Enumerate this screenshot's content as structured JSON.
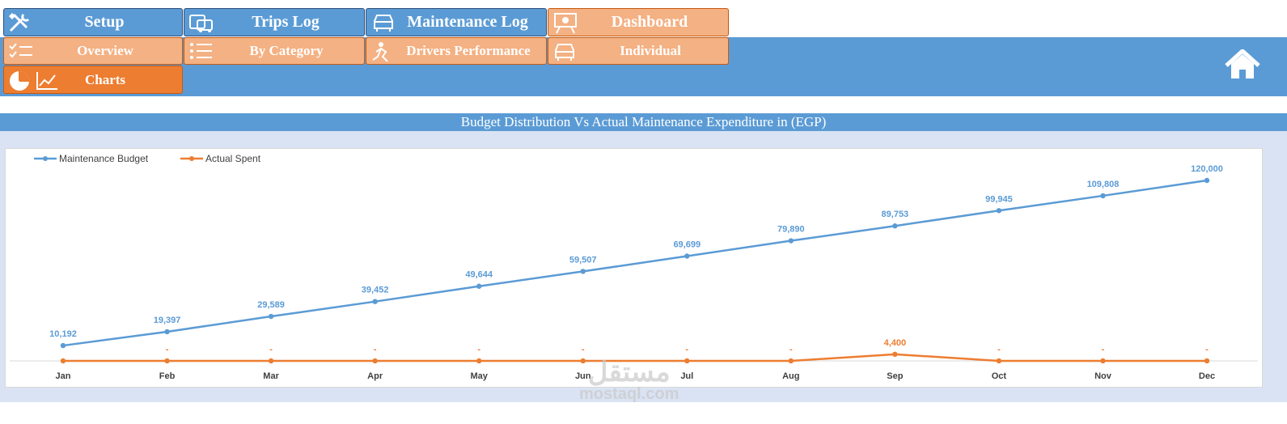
{
  "nav": {
    "setup": "Setup",
    "trips_log": "Trips Log",
    "maintenance_log": "Maintenance Log",
    "dashboard": "Dashboard",
    "overview": "Overview",
    "by_category": "By Category",
    "drivers_performance": "Drivers Performance",
    "individual": "Individual",
    "charts": "Charts"
  },
  "colors": {
    "blue": "#5b9bd5",
    "orange": "#ed7d31",
    "peach": "#f4b183"
  },
  "watermark": {
    "arabic": "مستقل",
    "latin": "mostaql.com"
  },
  "chart_data": {
    "type": "line",
    "title": "Budget Distribution Vs Actual Maintenance Expenditure in (EGP)",
    "categories": [
      "Jan",
      "Feb",
      "Mar",
      "Apr",
      "May",
      "Jun",
      "Jul",
      "Aug",
      "Sep",
      "Oct",
      "Nov",
      "Dec"
    ],
    "series": [
      {
        "name": "Maintenance Budget",
        "color": "#5b9bd5",
        "values": [
          10192,
          19397,
          29589,
          39452,
          49644,
          59507,
          69699,
          79890,
          89753,
          99945,
          109808,
          120000
        ],
        "labels": [
          "10,192",
          "19,397",
          "29,589",
          "39,452",
          "49,644",
          "59,507",
          "69,699",
          "79,890",
          "89,753",
          "99,945",
          "109,808",
          "120,000"
        ]
      },
      {
        "name": "Actual Spent",
        "color": "#ed7d31",
        "values": [
          0,
          0,
          0,
          0,
          0,
          0,
          0,
          0,
          4400,
          0,
          0,
          0
        ],
        "labels": [
          "",
          "-",
          "-",
          "-",
          "-",
          "-",
          "-",
          "-",
          "4,400",
          "-",
          "-",
          "-"
        ]
      }
    ],
    "ylim": [
      0,
      120000
    ],
    "grid": false,
    "legend": "top-left"
  }
}
